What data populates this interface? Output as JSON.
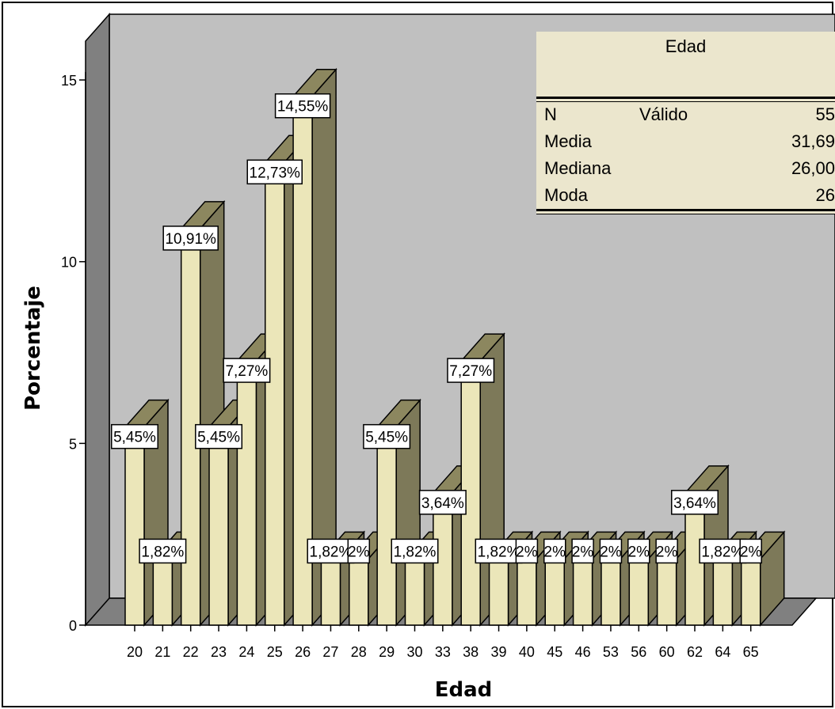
{
  "chart_data": {
    "type": "bar",
    "xlabel": "Edad",
    "ylabel": "Porcentaje",
    "ylim": [
      0,
      15
    ],
    "yticks": [
      "0",
      "5",
      "10",
      "15"
    ],
    "categories": [
      "20",
      "21",
      "22",
      "23",
      "24",
      "25",
      "26",
      "27",
      "28",
      "29",
      "30",
      "33",
      "38",
      "39",
      "40",
      "45",
      "46",
      "53",
      "56",
      "60",
      "62",
      "64",
      "65"
    ],
    "values": [
      5.45,
      1.82,
      10.91,
      5.45,
      7.27,
      12.73,
      14.55,
      1.82,
      1.82,
      5.45,
      1.82,
      3.64,
      7.27,
      1.82,
      1.82,
      1.82,
      1.82,
      1.82,
      1.82,
      1.82,
      3.64,
      1.82,
      1.82
    ],
    "labels": [
      "5,45%",
      "1,82%",
      "10,91%",
      "5,45%",
      "7,27%",
      "12,73%",
      "14,55%",
      "1,82%",
      "2%",
      "5,45%",
      "1,82%",
      "3,64%",
      "7,27%",
      "1,82%",
      "2%",
      "2%",
      "2%",
      "2%",
      "2%",
      "2%",
      "3,64%",
      "1,82%",
      "2%"
    ],
    "colors": {
      "bar_front": "#ebe6b9",
      "bar_top": "#8c875f",
      "bar_side": "#7d7959",
      "wall": "#c0c0c0",
      "wall_side": "#808080"
    }
  },
  "stats_table": {
    "title": "Edad",
    "rows": [
      {
        "label": "N",
        "sublabel": "Válido",
        "value": "55"
      },
      {
        "label": "Media",
        "sublabel": "",
        "value": "31,69"
      },
      {
        "label": "Mediana",
        "sublabel": "",
        "value": "26,00"
      },
      {
        "label": "Moda",
        "sublabel": "",
        "value": "26"
      }
    ]
  }
}
